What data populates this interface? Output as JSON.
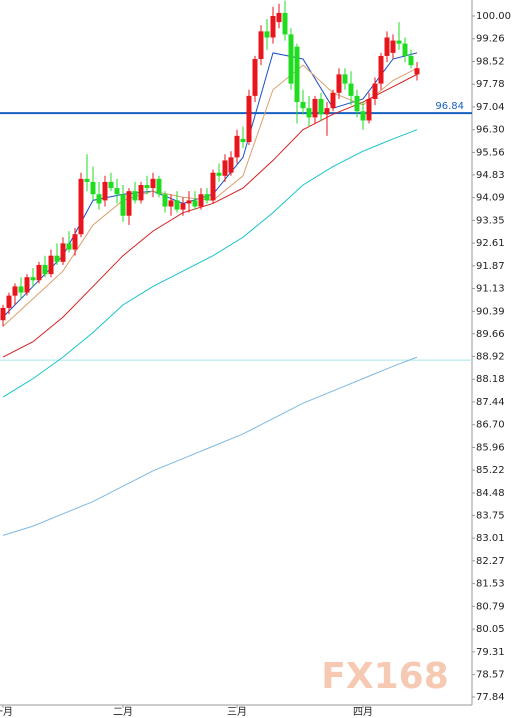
{
  "chart_data": {
    "type": "candlestick",
    "categories": [
      "一月",
      null,
      null,
      null,
      null,
      null,
      null,
      null,
      null,
      null,
      null,
      null,
      null,
      null,
      null,
      null,
      null,
      null,
      null,
      null,
      "二月",
      null,
      null,
      null,
      null,
      null,
      null,
      null,
      null,
      null,
      null,
      null,
      null,
      null,
      null,
      null,
      null,
      null,
      null,
      "三月",
      null,
      null,
      null,
      null,
      null,
      null,
      null,
      null,
      null,
      null,
      null,
      null,
      null,
      null,
      null,
      null,
      null,
      null,
      null,
      null,
      "四月",
      null,
      null,
      null,
      null,
      null,
      null,
      null,
      null,
      null
    ],
    "open": [
      90.1,
      90.5,
      90.9,
      91.2,
      91.0,
      91.5,
      91.4,
      91.9,
      91.6,
      92.2,
      92.0,
      92.6,
      92.4,
      92.9,
      94.7,
      94.6,
      94.2,
      94.0,
      94.6,
      94.4,
      94.2,
      93.5,
      94.3,
      94.0,
      94.5,
      94.4,
      94.7,
      94.2,
      93.8,
      94.0,
      93.7,
      93.9,
      94.0,
      93.8,
      94.2,
      94.0,
      94.9,
      94.8,
      94.9,
      95.4,
      96.0,
      95.9,
      97.4,
      98.6,
      99.5,
      99.3,
      99.8,
      100.1,
      99.4,
      99.0,
      97.2,
      97.0,
      96.7,
      97.3,
      96.8,
      97.0,
      97.5,
      98.1,
      97.8,
      97.4,
      96.9,
      96.6,
      97.3,
      97.8,
      98.7,
      98.8,
      99.2,
      99.1,
      98.7,
      98.1
    ],
    "high": [
      90.6,
      91.0,
      91.3,
      91.5,
      91.6,
      91.8,
      92.0,
      92.2,
      92.4,
      92.6,
      92.8,
      93.0,
      93.1,
      94.9,
      95.5,
      95.1,
      94.6,
      94.8,
      94.9,
      94.7,
      94.5,
      94.4,
      94.6,
      94.6,
      94.8,
      94.9,
      94.8,
      94.3,
      94.2,
      94.3,
      94.1,
      94.3,
      94.3,
      94.4,
      94.4,
      95.0,
      95.2,
      95.5,
      95.6,
      96.3,
      96.4,
      97.6,
      98.7,
      99.7,
      99.9,
      100.3,
      100.4,
      100.5,
      99.6,
      99.1,
      97.6,
      97.4,
      97.4,
      97.5,
      97.2,
      97.6,
      98.3,
      98.3,
      98.2,
      97.6,
      97.2,
      97.5,
      98.0,
      98.8,
      99.5,
      99.4,
      99.8,
      99.3,
      98.9,
      98.5
    ],
    "low": [
      89.9,
      90.3,
      90.6,
      90.8,
      90.9,
      91.2,
      91.3,
      91.5,
      91.5,
      91.9,
      91.9,
      92.3,
      92.2,
      92.8,
      94.3,
      94.0,
      93.7,
      93.8,
      94.3,
      93.9,
      93.3,
      93.2,
      93.9,
      93.9,
      94.2,
      94.1,
      94.1,
      93.6,
      93.5,
      93.6,
      93.5,
      93.6,
      93.7,
      93.7,
      93.9,
      93.9,
      94.6,
      94.6,
      94.8,
      95.2,
      95.7,
      95.8,
      97.2,
      98.4,
      98.9,
      99.1,
      99.6,
      99.2,
      97.6,
      96.5,
      96.8,
      96.4,
      96.5,
      96.6,
      96.1,
      96.9,
      97.3,
      97.6,
      97.1,
      96.7,
      96.3,
      96.5,
      97.1,
      97.6,
      98.5,
      98.6,
      98.9,
      98.5,
      98.3,
      97.9
    ],
    "close": [
      90.5,
      90.9,
      91.2,
      91.0,
      91.5,
      91.4,
      91.9,
      91.6,
      92.2,
      92.0,
      92.6,
      92.4,
      92.9,
      94.7,
      94.6,
      94.2,
      93.9,
      94.6,
      94.4,
      94.2,
      93.5,
      94.3,
      94.0,
      94.5,
      94.4,
      94.7,
      94.2,
      93.8,
      94.0,
      93.7,
      93.9,
      94.0,
      93.8,
      94.2,
      94.0,
      94.9,
      94.8,
      95.3,
      95.4,
      96.1,
      95.9,
      97.4,
      98.6,
      99.5,
      99.3,
      100.0,
      100.1,
      99.4,
      97.8,
      97.2,
      97.0,
      96.7,
      97.3,
      96.8,
      97.0,
      97.5,
      98.1,
      97.8,
      97.4,
      96.9,
      96.6,
      97.3,
      97.8,
      98.7,
      99.3,
      99.2,
      99.1,
      98.7,
      98.4,
      98.3
    ],
    "up_color": "#e8161c",
    "down_color": "#1fdc1f",
    "lines": [
      {
        "color": "#1a4fc4",
        "x": [
          0,
          5,
          10,
          15,
          20,
          25,
          30,
          35,
          40,
          45,
          50,
          55,
          60,
          65,
          69
        ],
        "values": [
          90.2,
          91.2,
          92.2,
          94.0,
          94.2,
          94.3,
          93.9,
          94.2,
          95.4,
          98.8,
          98.6,
          97.0,
          97.3,
          98.6,
          98.8
        ]
      },
      {
        "color": "#d9a070",
        "x": [
          0,
          5,
          10,
          15,
          20,
          25,
          30,
          35,
          40,
          45,
          50,
          55,
          60,
          65,
          69
        ],
        "values": [
          89.9,
          90.8,
          91.7,
          93.2,
          94.0,
          94.3,
          94.1,
          94.0,
          94.8,
          97.6,
          98.4,
          97.5,
          97.1,
          97.9,
          98.3
        ]
      },
      {
        "color": "#d42020",
        "x": [
          0,
          5,
          10,
          15,
          20,
          25,
          30,
          35,
          40,
          45,
          50,
          55,
          60,
          65,
          69
        ],
        "values": [
          88.9,
          89.4,
          90.2,
          91.2,
          92.2,
          93.0,
          93.6,
          93.9,
          94.4,
          95.3,
          96.3,
          96.8,
          97.2,
          97.7,
          98.1
        ]
      },
      {
        "color": "#16c4cc",
        "x": [
          0,
          5,
          10,
          15,
          20,
          25,
          30,
          35,
          40,
          45,
          50,
          55,
          60,
          65,
          69
        ],
        "values": [
          87.6,
          88.2,
          88.9,
          89.7,
          90.6,
          91.2,
          91.7,
          92.2,
          92.8,
          93.6,
          94.5,
          95.1,
          95.6,
          96.0,
          96.3
        ]
      },
      {
        "color": "#7fb8e0",
        "x": [
          0,
          5,
          10,
          15,
          20,
          25,
          30,
          35,
          40,
          45,
          50,
          55,
          60,
          65,
          69
        ],
        "values": [
          83.1,
          83.4,
          83.8,
          84.2,
          84.7,
          85.2,
          85.6,
          86.0,
          86.4,
          86.9,
          87.4,
          87.8,
          88.2,
          88.6,
          88.9
        ]
      }
    ],
    "reference_lines": [
      {
        "value": 96.84,
        "color": "#1560c0",
        "labeled": true
      },
      {
        "value": 88.8,
        "color": "#a8e8ec",
        "labeled": false
      }
    ],
    "ylim": [
      77.58,
      100.52
    ],
    "yticks": [
      {
        "value": 100,
        "label": "100.00"
      },
      99.26,
      98.52,
      97.78,
      97.04,
      {
        "value": 96.3,
        "label": "96.30"
      },
      95.56,
      94.83,
      94.09,
      93.35,
      92.61,
      91.87,
      91.13,
      90.39,
      89.66,
      88.92,
      88.18,
      87.44,
      {
        "value": 86.7,
        "label": "86.70"
      },
      85.96,
      85.22,
      84.48,
      83.75,
      83.01,
      82.27,
      81.53,
      80.79,
      80.05,
      79.31,
      78.57,
      77.84
    ],
    "watermark": "FX168"
  }
}
